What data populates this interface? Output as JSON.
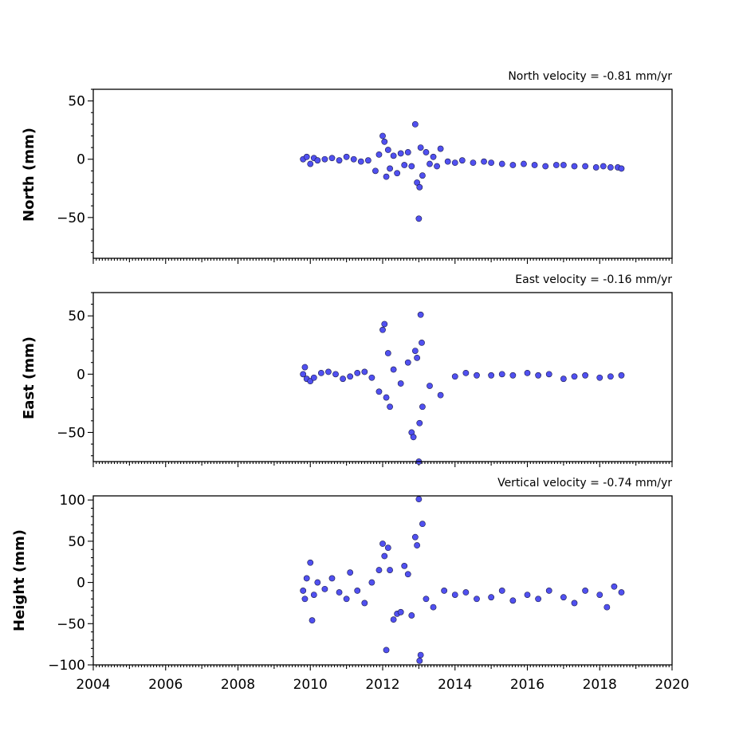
{
  "chart_data": [
    {
      "type": "scatter",
      "annotation": "North velocity = -0.81 mm/yr",
      "ylabel": "North (mm)",
      "xlim": [
        2004,
        2020
      ],
      "ylim": [
        -85,
        60
      ],
      "yticks": [
        50,
        0,
        -50
      ],
      "ytick_labels": [
        "50",
        "0",
        "−50"
      ],
      "xtick_labels_visible": false,
      "color": "#5050f0",
      "series": [
        {
          "x": [
            2009.8,
            2009.9,
            2010.0,
            2010.1,
            2010.2,
            2010.4,
            2010.6,
            2010.8,
            2011.0,
            2011.2,
            2011.4,
            2011.6,
            2011.8,
            2011.9,
            2012.0,
            2012.05,
            2012.1,
            2012.15,
            2012.2,
            2012.3,
            2012.4,
            2012.5,
            2012.6,
            2012.7,
            2012.8,
            2012.9,
            2012.95,
            2013.0,
            2013.02,
            2013.05,
            2013.1,
            2013.2,
            2013.3,
            2013.4,
            2013.5,
            2013.6,
            2013.8,
            2014.0,
            2014.2,
            2014.5,
            2014.8,
            2015.0,
            2015.3,
            2015.6,
            2015.9,
            2016.2,
            2016.5,
            2016.8,
            2017.0,
            2017.3,
            2017.6,
            2017.9,
            2018.1,
            2018.3,
            2018.5,
            2018.6
          ],
          "y": [
            0,
            2,
            -4,
            1,
            -1,
            0,
            1,
            -1,
            2,
            0,
            -2,
            -1,
            -10,
            4,
            20,
            15,
            -15,
            8,
            -8,
            3,
            -12,
            5,
            -5,
            6,
            -6,
            30,
            -20,
            -51,
            -24,
            10,
            -14,
            6,
            -4,
            2,
            -6,
            9,
            -2,
            -3,
            -1,
            -3,
            -2,
            -3,
            -4,
            -5,
            -4,
            -5,
            -6,
            -5,
            -5,
            -6,
            -6,
            -7,
            -6,
            -7,
            -7,
            -8
          ]
        }
      ]
    },
    {
      "type": "scatter",
      "annotation": "East velocity = -0.16 mm/yr",
      "ylabel": "East (mm)",
      "xlim": [
        2004,
        2020
      ],
      "ylim": [
        -75,
        70
      ],
      "yticks": [
        50,
        0,
        -50
      ],
      "ytick_labels": [
        "50",
        "0",
        "−50"
      ],
      "xtick_labels_visible": false,
      "color": "#5050f0",
      "series": [
        {
          "x": [
            2009.8,
            2009.85,
            2009.9,
            2010.0,
            2010.1,
            2010.3,
            2010.5,
            2010.7,
            2010.9,
            2011.1,
            2011.3,
            2011.5,
            2011.7,
            2011.9,
            2012.0,
            2012.05,
            2012.1,
            2012.15,
            2012.2,
            2012.3,
            2012.5,
            2012.7,
            2012.8,
            2012.85,
            2012.9,
            2012.95,
            2013.0,
            2013.02,
            2013.05,
            2013.08,
            2013.1,
            2013.3,
            2013.6,
            2014.0,
            2014.3,
            2014.6,
            2015.0,
            2015.3,
            2015.6,
            2016.0,
            2016.3,
            2016.6,
            2017.0,
            2017.3,
            2017.6,
            2018.0,
            2018.3,
            2018.6
          ],
          "y": [
            0,
            6,
            -4,
            -6,
            -3,
            1,
            2,
            0,
            -4,
            -2,
            1,
            2,
            -3,
            -15,
            38,
            43,
            -20,
            18,
            -28,
            4,
            -8,
            10,
            -50,
            -54,
            20,
            14,
            -75,
            -42,
            51,
            27,
            -28,
            -10,
            -18,
            -2,
            1,
            -1,
            -1,
            0,
            -1,
            1,
            -1,
            0,
            -4,
            -2,
            -1,
            -3,
            -2,
            -1
          ]
        }
      ]
    },
    {
      "type": "scatter",
      "annotation": "Vertical velocity = -0.74 mm/yr",
      "ylabel": "Height (mm)",
      "xlabel_ticks": [
        "2004",
        "2006",
        "2008",
        "2010",
        "2012",
        "2014",
        "2016",
        "2018",
        "2020"
      ],
      "xlim": [
        2004,
        2020
      ],
      "ylim": [
        -100,
        105
      ],
      "yticks": [
        100,
        50,
        0,
        -50,
        -100
      ],
      "ytick_labels": [
        "100",
        "50",
        "0",
        "−50",
        "−100"
      ],
      "xtick_labels_visible": true,
      "color": "#5050f0",
      "series": [
        {
          "x": [
            2009.8,
            2009.85,
            2009.9,
            2010.0,
            2010.05,
            2010.1,
            2010.2,
            2010.4,
            2010.6,
            2010.8,
            2011.0,
            2011.1,
            2011.3,
            2011.5,
            2011.7,
            2011.9,
            2012.0,
            2012.05,
            2012.1,
            2012.15,
            2012.2,
            2012.3,
            2012.4,
            2012.5,
            2012.6,
            2012.7,
            2012.8,
            2012.9,
            2012.95,
            2013.0,
            2013.02,
            2013.05,
            2013.1,
            2013.2,
            2013.4,
            2013.7,
            2014.0,
            2014.3,
            2014.6,
            2015.0,
            2015.3,
            2015.6,
            2016.0,
            2016.3,
            2016.6,
            2017.0,
            2017.3,
            2017.6,
            2018.0,
            2018.2,
            2018.4,
            2018.6
          ],
          "y": [
            -10,
            -20,
            5,
            24,
            -46,
            -15,
            0,
            -8,
            5,
            -12,
            -20,
            12,
            -10,
            -25,
            0,
            15,
            47,
            32,
            -82,
            42,
            15,
            -45,
            -38,
            -36,
            20,
            10,
            -40,
            55,
            45,
            101,
            -95,
            -88,
            71,
            -20,
            -30,
            -10,
            -15,
            -12,
            -20,
            -18,
            -10,
            -22,
            -15,
            -20,
            -10,
            -18,
            -25,
            -10,
            -15,
            -30,
            -5,
            -12
          ]
        }
      ]
    }
  ]
}
